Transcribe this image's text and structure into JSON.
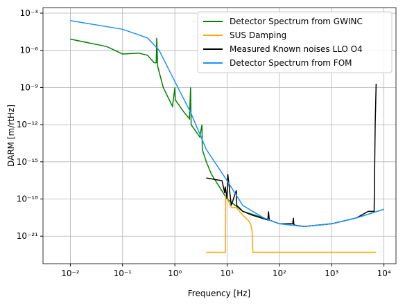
{
  "chart_data": {
    "type": "line",
    "xlabel": "Frequency [Hz]",
    "ylabel": "DARM [m/rtHz]",
    "xscale": "log",
    "yscale": "log",
    "grid": true,
    "legend": "upper right",
    "xlim": [
      0.003,
      17000
    ],
    "ylim": [
      6e-24,
      0.0028
    ],
    "xticks": [
      {
        "value": 0.01,
        "label": "10⁻²"
      },
      {
        "value": 0.1,
        "label": "10⁻¹"
      },
      {
        "value": 1,
        "label": "10⁰"
      },
      {
        "value": 10,
        "label": "10¹"
      },
      {
        "value": 100,
        "label": "10²"
      },
      {
        "value": 1000,
        "label": "10³"
      },
      {
        "value": 10000,
        "label": "10⁴"
      }
    ],
    "yticks": [
      {
        "value": 1e-21,
        "label": "10⁻²¹"
      },
      {
        "value": 1e-18,
        "label": "10⁻¹⁸"
      },
      {
        "value": 1e-15,
        "label": "10⁻¹⁵"
      },
      {
        "value": 1e-12,
        "label": "10⁻¹²"
      },
      {
        "value": 1e-09,
        "label": "10⁻⁹"
      },
      {
        "value": 1e-06,
        "label": "10⁻⁶"
      },
      {
        "value": 0.001,
        "label": "10⁻³"
      }
    ],
    "series": [
      {
        "name": "Detector Spectrum from GWINC",
        "color": "#008000",
        "x": [
          0.01,
          0.05,
          0.1,
          0.2,
          0.3,
          0.4,
          0.44,
          0.45,
          0.47,
          0.6,
          0.9,
          1.0,
          1.02,
          1.5,
          1.9,
          2.0,
          2.05,
          3.0,
          3.3,
          3.35,
          4,
          5,
          10,
          20,
          50,
          100,
          300,
          1000,
          3000,
          10000
        ],
        "values": [
          8e-06,
          2e-06,
          5e-07,
          6e-07,
          4e-07,
          1e-07,
          1e-07,
          1e-05,
          5e-08,
          1e-09,
          3e-11,
          1e-09,
          1e-10,
          1e-11,
          3e-12,
          1e-09,
          1e-12,
          1e-13,
          1e-12,
          1e-14,
          1e-15,
          1e-16,
          1e-18,
          1e-19,
          3e-20,
          1e-20,
          6e-21,
          1e-20,
          3e-20,
          1.5e-19
        ]
      },
      {
        "name": "SUS Damping",
        "color": "#ffa500",
        "x": [
          4,
          9.3,
          9.4,
          12,
          15,
          20,
          25,
          28,
          30,
          31,
          7000
        ],
        "values": [
          5e-23,
          5e-23,
          2e-18,
          2e-19,
          2e-19,
          5e-20,
          2e-20,
          1e-20,
          3e-21,
          5e-23,
          5e-23
        ]
      },
      {
        "name": "Measured Known noises LLO O4",
        "color": "#000000",
        "x": [
          4,
          8,
          9,
          9.2,
          10,
          10.3,
          12,
          15,
          15.3,
          17,
          20,
          30,
          60,
          62,
          64,
          100,
          180,
          185,
          190,
          300,
          1000,
          3000,
          5000,
          6500,
          6800,
          7100
        ],
        "values": [
          5e-17,
          3e-17,
          3e-18,
          1e-17,
          1e-18,
          1e-16,
          3e-19,
          5e-18,
          3e-19,
          2e-19,
          1e-19,
          5e-20,
          2e-20,
          1e-19,
          2e-20,
          1e-20,
          1e-20,
          3e-20,
          8e-21,
          6e-21,
          1e-20,
          3e-20,
          1e-19,
          1e-19,
          1e-12,
          2e-09
        ]
      },
      {
        "name": "Detector Spectrum from FOM",
        "color": "#1e90ff",
        "x": [
          0.01,
          0.1,
          0.3,
          0.5,
          1,
          2,
          4,
          10,
          20,
          50,
          100,
          300,
          1000,
          3000,
          10000
        ],
        "values": [
          0.00025,
          5e-05,
          1e-05,
          1e-06,
          3e-09,
          1e-11,
          1e-14,
          3e-17,
          3e-19,
          3e-20,
          1e-20,
          6e-21,
          1e-20,
          3e-20,
          1.5e-19
        ]
      }
    ]
  }
}
